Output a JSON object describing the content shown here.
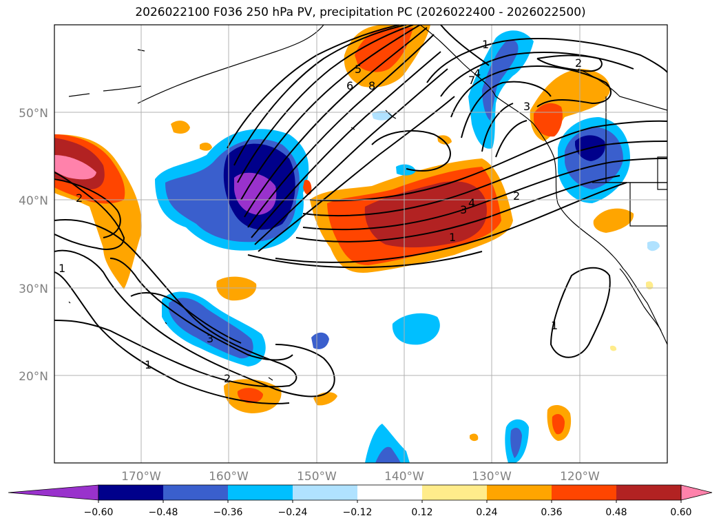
{
  "title": "2026022100 F036 250 hPa PV, precipitation PC (2026022400 - 2026022500)",
  "lat_labels": [
    "50°N",
    "40°N",
    "30°N",
    "20°N"
  ],
  "lon_labels": [
    "170°W",
    "160°W",
    "150°W",
    "140°W",
    "130°W",
    "120°W"
  ],
  "colorbar": {
    "tick_labels": [
      "−0.60",
      "−0.48",
      "−0.36",
      "−0.24",
      "−0.12",
      "0.12",
      "0.24",
      "0.36",
      "0.48",
      "0.60"
    ],
    "colors": [
      "#9932cc",
      "#00008b",
      "#3a5fcd",
      "#00bfff",
      "#b0e2ff",
      "#ffffff",
      "#ffec8b",
      "#ffa500",
      "#ff4500",
      "#b22222",
      "#ff82ab"
    ]
  },
  "contour_labels": [
    "2",
    "1",
    "3",
    "5",
    "6",
    "8",
    "7",
    "4",
    "3",
    "4",
    "2",
    "1",
    "2",
    "1",
    "3",
    "1",
    "2"
  ],
  "map_extent": {
    "lon": [
      -180,
      -110
    ],
    "lat": [
      10,
      60
    ]
  }
}
